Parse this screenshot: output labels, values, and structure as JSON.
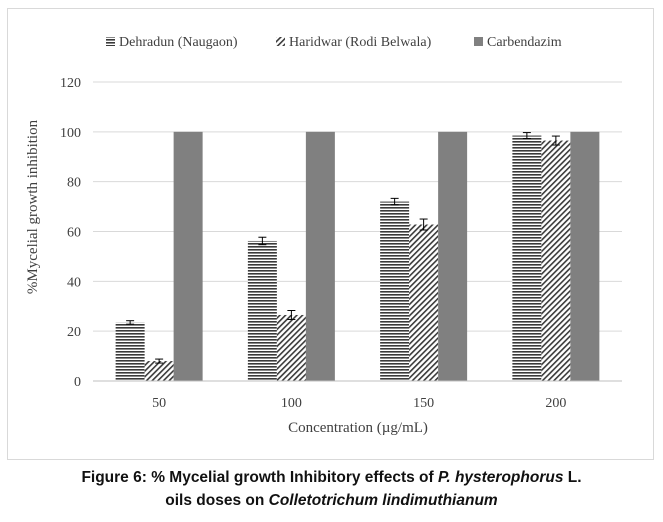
{
  "chart_data": {
    "type": "bar",
    "title": "",
    "xlabel": "Concentration (µg/mL)",
    "ylabel": "%Mycelial growth inhibition",
    "categories": [
      "50",
      "100",
      "150",
      "200"
    ],
    "ylim": [
      0,
      120
    ],
    "yticks": [
      0,
      20,
      40,
      60,
      80,
      100,
      120
    ],
    "grid": true,
    "legend_position": "top",
    "series": [
      {
        "name": "Dehradun (Naugaon)",
        "values": [
          23.5,
          56.2,
          72.0,
          98.5
        ],
        "errors": [
          0.7,
          1.5,
          1.3,
          1.2
        ],
        "pattern": "horizontal-lines",
        "color": "#3a3a3a"
      },
      {
        "name": "Haridwar (Rodi Belwala)",
        "values": [
          8.0,
          26.5,
          62.8,
          96.5
        ],
        "errors": [
          0.8,
          1.8,
          2.2,
          1.8
        ],
        "pattern": "diagonal-lines",
        "color": "#3a3a3a"
      },
      {
        "name": "Carbendazim",
        "values": [
          100,
          100,
          100,
          100
        ],
        "errors": [
          0,
          0,
          0,
          0
        ],
        "pattern": "solid",
        "color": "#808080"
      }
    ]
  },
  "caption": {
    "line1_prefix": "Figure 6: % Mycelial growth Inhibitory effects of ",
    "line1_italic": "P. hysterophorus",
    "line1_suffix": " L.",
    "line2_prefix": "oils doses on ",
    "line2_italic": "Colletotrichum lindimuthianum"
  }
}
